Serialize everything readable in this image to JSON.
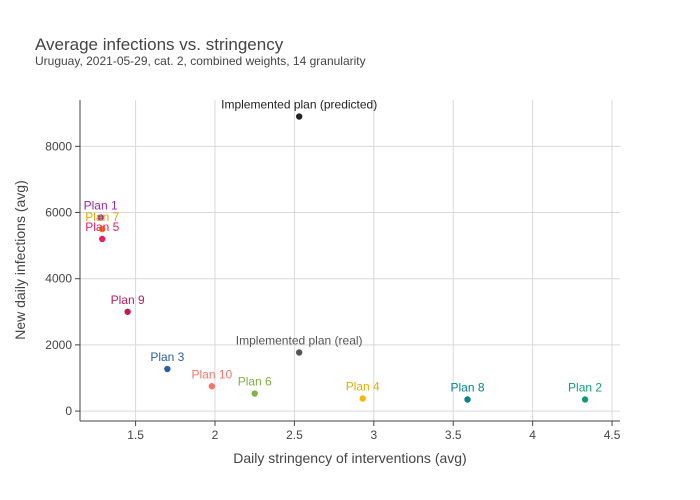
{
  "chart_data": {
    "type": "scatter",
    "title": "Average infections vs. stringency",
    "subtitle": "Uruguay, 2021-05-29, cat. 2, combined weights, 14 granularity",
    "xlabel": "Daily stringency of interventions (avg)",
    "ylabel": "New daily infections (avg)",
    "xlim": [
      1.15,
      4.55
    ],
    "ylim": [
      -300,
      9400
    ],
    "x_ticks": [
      1.5,
      2,
      2.5,
      3,
      3.5,
      4,
      4.5
    ],
    "x_tick_labels": [
      "1.5",
      "2",
      "2.5",
      "3",
      "3.5",
      "4",
      "4.5"
    ],
    "y_ticks": [
      0,
      2000,
      4000,
      6000,
      8000
    ],
    "y_tick_labels": [
      "0",
      "2000",
      "4000",
      "6000",
      "8000"
    ],
    "grid": true,
    "legend": "none",
    "points": [
      {
        "label": "Implemented plan (predicted)",
        "x": 2.53,
        "y": 8900,
        "color": "#222222",
        "label_color": "#222222"
      },
      {
        "label": "Plan 1",
        "x": 1.28,
        "y": 5850,
        "color": "#9c27b0",
        "label_color": "#9c27b0"
      },
      {
        "label": "Plan 7",
        "x": 1.29,
        "y": 5500,
        "color": "#f57c00",
        "label_color": "#e0a800"
      },
      {
        "label": "Plan 5",
        "x": 1.29,
        "y": 5200,
        "color": "#e91e63",
        "label_color": "#e91e63"
      },
      {
        "label": "Plan 9",
        "x": 1.45,
        "y": 3000,
        "color": "#c2185b",
        "label_color": "#c2185b"
      },
      {
        "label": "Implemented plan (real)",
        "x": 2.53,
        "y": 1770,
        "color": "#555555",
        "label_color": "#555555"
      },
      {
        "label": "Plan 3",
        "x": 1.7,
        "y": 1270,
        "color": "#2b5fa6",
        "label_color": "#2b5fa6"
      },
      {
        "label": "Plan 10",
        "x": 1.98,
        "y": 750,
        "color": "#f4756b",
        "label_color": "#f4756b"
      },
      {
        "label": "Plan 6",
        "x": 2.25,
        "y": 530,
        "color": "#7cb342",
        "label_color": "#7cb342"
      },
      {
        "label": "Plan 4",
        "x": 2.93,
        "y": 380,
        "color": "#f5b700",
        "label_color": "#e6ac00"
      },
      {
        "label": "Plan 8",
        "x": 3.59,
        "y": 350,
        "color": "#00838f",
        "label_color": "#00838f"
      },
      {
        "label": "Plan 2",
        "x": 4.33,
        "y": 350,
        "color": "#0f9d75",
        "label_color": "#0f9d75"
      }
    ]
  }
}
